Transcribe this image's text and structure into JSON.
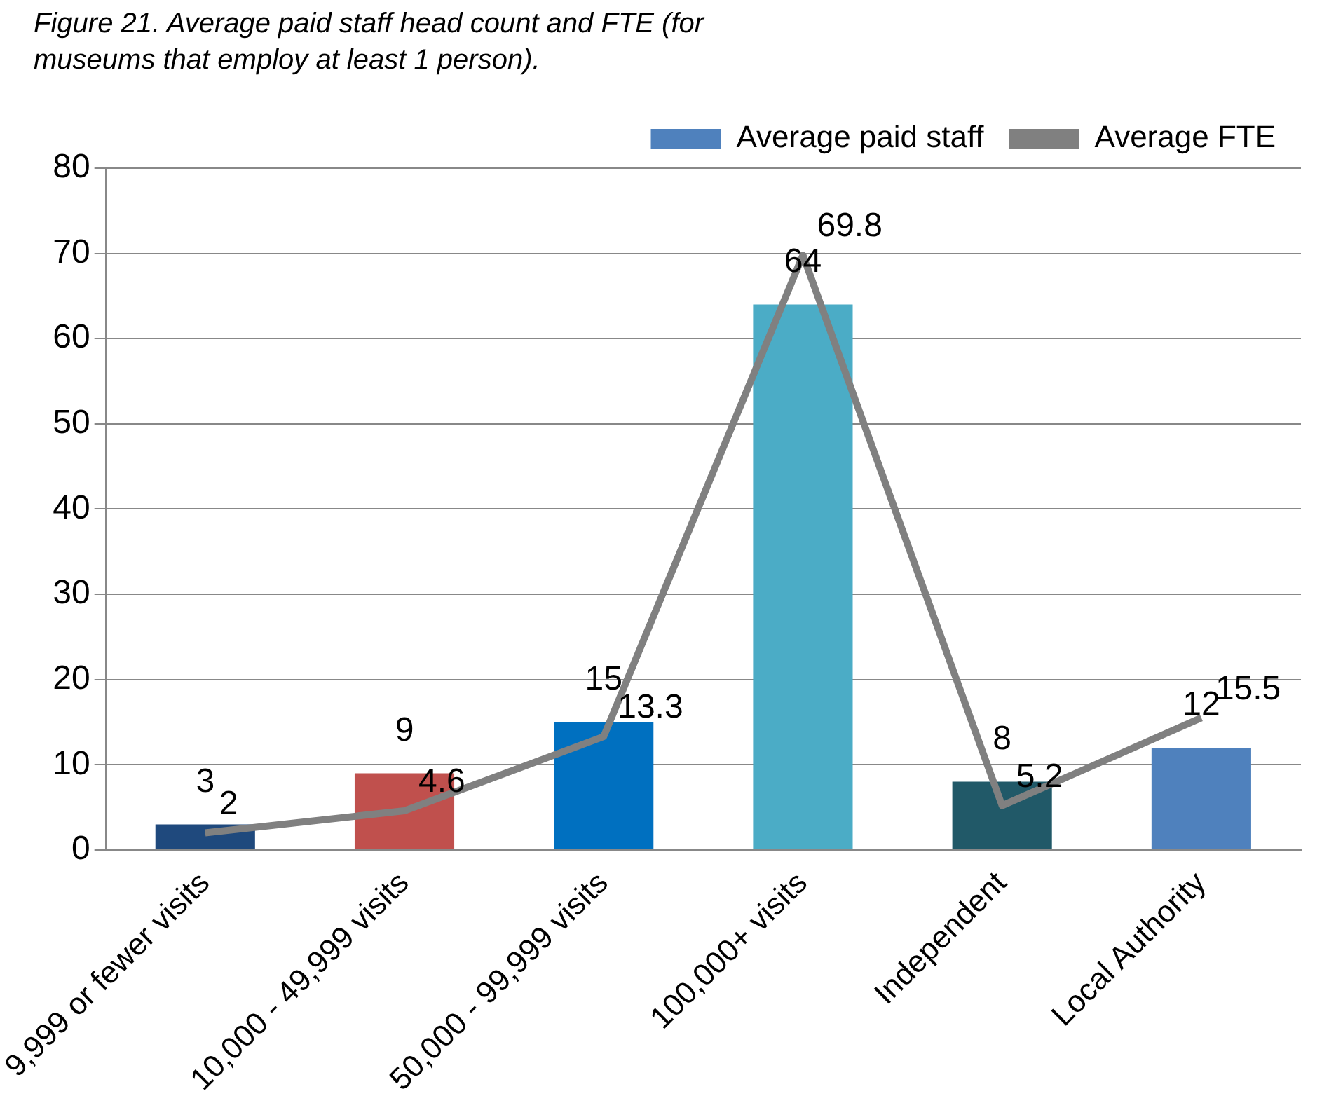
{
  "chart_data": {
    "type": "bar",
    "title": "Figure 21. Average paid staff head count and FTE (for museums that employ at least 1 person).",
    "categories": [
      "9,999 or fewer visits",
      "10,000 - 49,999 visits",
      "50,000 - 99,999 visits",
      "100,000+ visits",
      "Independent",
      "Local Authority"
    ],
    "series": [
      {
        "name": "Average paid staff",
        "color": "#4f81bd",
        "colors": [
          "#1f497d",
          "#c0504d",
          "#0070c0",
          "#4bacc6",
          "#215968",
          "#4f81bd"
        ],
        "values": [
          3,
          9,
          15,
          64,
          8,
          12
        ]
      },
      {
        "name": "Average FTE",
        "type": "line",
        "color": "#808080",
        "values": [
          2,
          4.6,
          13.3,
          69.8,
          5.2,
          15.5
        ]
      }
    ],
    "ylim": [
      0,
      80
    ],
    "yticks": [
      0,
      10,
      20,
      30,
      40,
      50,
      60,
      70,
      80
    ],
    "grid": "y",
    "legend": "top right",
    "data_labels": true,
    "marker": "none"
  }
}
